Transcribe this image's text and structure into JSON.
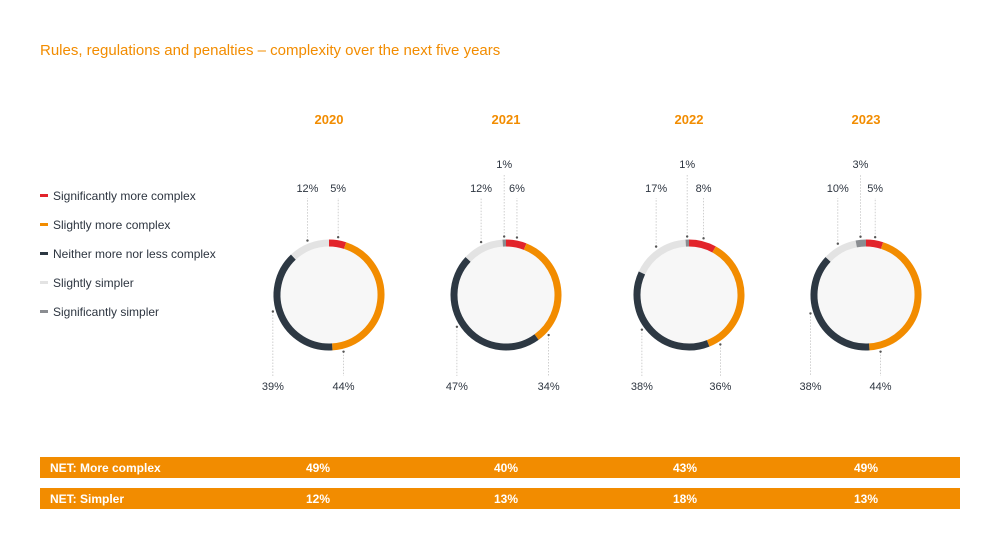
{
  "title": "Rules, regulations and penalties – complexity over the next five years",
  "colors": {
    "accent": "#f28c00"
  },
  "chart_data": {
    "type": "pie",
    "donut": true,
    "legend_placement": "left",
    "series_names": [
      "Significantly more complex",
      "Slightly more complex",
      "Neither more nor less complex",
      "Slightly simpler",
      "Significantly simpler"
    ],
    "series_colors": [
      "#e2242b",
      "#f28c00",
      "#2d3843",
      "#e3e3e3",
      "#8a8d91"
    ],
    "charts": [
      {
        "year": "2020",
        "values": [
          5,
          44,
          39,
          12,
          0
        ],
        "labels": [
          "5%",
          "44%",
          "39%",
          "12%",
          ""
        ]
      },
      {
        "year": "2021",
        "values": [
          6,
          34,
          47,
          12,
          1
        ],
        "labels": [
          "6%",
          "34%",
          "47%",
          "12%",
          "1%"
        ]
      },
      {
        "year": "2022",
        "values": [
          8,
          36,
          38,
          17,
          1
        ],
        "labels": [
          "8%",
          "36%",
          "38%",
          "17%",
          "1%"
        ]
      },
      {
        "year": "2023",
        "values": [
          5,
          44,
          38,
          10,
          3
        ],
        "labels": [
          "5%",
          "44%",
          "38%",
          "10%",
          "3%"
        ]
      }
    ]
  },
  "net_rows": [
    {
      "label": "NET: More complex",
      "values": [
        "49%",
        "40%",
        "43%",
        "49%"
      ]
    },
    {
      "label": "NET: Simpler",
      "values": [
        "12%",
        "13%",
        "18%",
        "13%"
      ]
    }
  ]
}
